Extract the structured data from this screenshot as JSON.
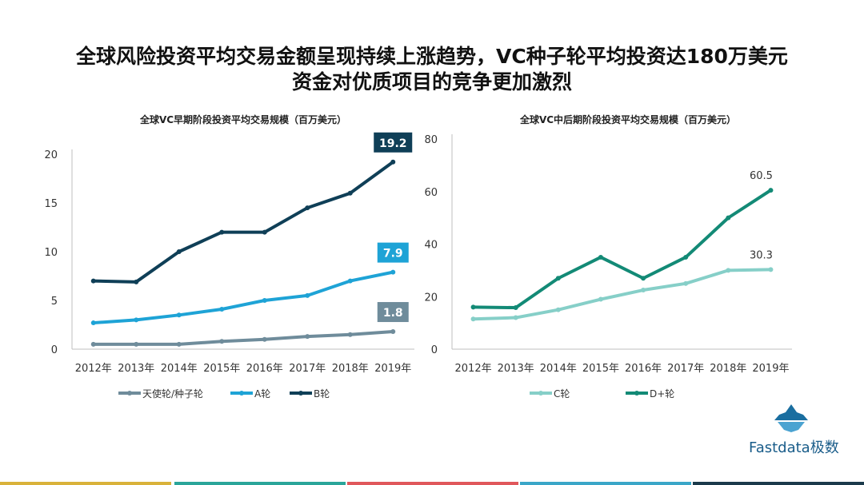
{
  "title": {
    "line1": "全球风险投资平均交易金额呈现持续上涨趋势，VC种子轮平均投资达180万美元",
    "line2": "资金对优质项目的竞争更加激烈"
  },
  "logo": {
    "text": "Fastdata极数",
    "icon": "iceberg-icon"
  },
  "footer_colors": [
    "#d9b23a",
    "#2aa59a",
    "#e0575b",
    "#3aa6c8",
    "#1b3a4b"
  ],
  "chart_data": [
    {
      "type": "line",
      "title": "全球VC早期阶段投资平均交易规模（百万美元）",
      "categories": [
        "2012年",
        "2013年",
        "2014年",
        "2015年",
        "2016年",
        "2017年",
        "2018年",
        "2019年"
      ],
      "ylim": [
        0,
        20
      ],
      "yticks": [
        0,
        5,
        10,
        15,
        20
      ],
      "series": [
        {
          "name": "天使轮/种子轮",
          "color": "#6f8c9b",
          "values": [
            0.5,
            0.5,
            0.5,
            0.8,
            1.0,
            1.3,
            1.5,
            1.8
          ],
          "end_label": "1.8"
        },
        {
          "name": "A轮",
          "color": "#1ea3d6",
          "values": [
            2.7,
            3.0,
            3.5,
            4.1,
            5.0,
            5.5,
            7.0,
            7.9
          ],
          "end_label": "7.9"
        },
        {
          "name": "B轮",
          "color": "#0f3f57",
          "values": [
            7.0,
            6.9,
            10.0,
            12.0,
            12.0,
            14.5,
            16.0,
            19.2
          ],
          "end_label": "19.2"
        }
      ]
    },
    {
      "type": "line",
      "title": "全球VC中后期阶段投资平均交易规模（百万美元）",
      "categories": [
        "2012年",
        "2013年",
        "2014年",
        "2015年",
        "2016年",
        "2017年",
        "2018年",
        "2019年"
      ],
      "ylim": [
        0,
        80
      ],
      "yticks": [
        0,
        20,
        40,
        60,
        80
      ],
      "series": [
        {
          "name": "C轮",
          "color": "#86cfc8",
          "values": [
            11.5,
            12.0,
            15.0,
            19.0,
            22.5,
            25.0,
            30.0,
            30.3
          ],
          "end_label": "30.3"
        },
        {
          "name": "D+轮",
          "color": "#138a76",
          "values": [
            16.0,
            15.8,
            27.0,
            35.0,
            27.0,
            35.0,
            50.0,
            60.5
          ],
          "end_label": "60.5"
        }
      ]
    }
  ]
}
